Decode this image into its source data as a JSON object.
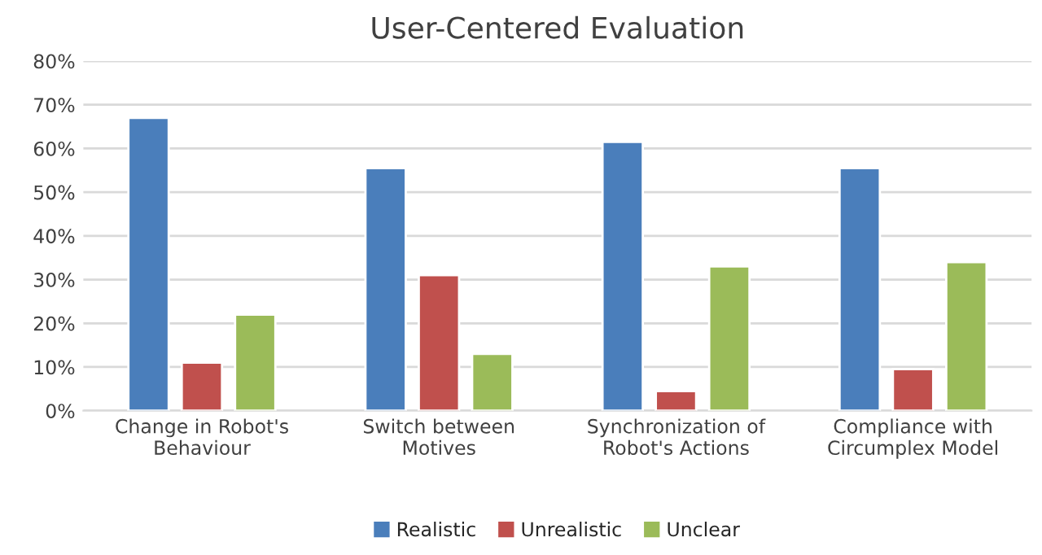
{
  "chart_data": {
    "type": "bar",
    "title": "User-Centered Evaluation",
    "categories": [
      "Change in Robot's\nBehaviour",
      "Switch between\nMotives",
      "Synchronization of\nRobot's Actions",
      "Compliance with\nCircumplex Model"
    ],
    "series": [
      {
        "name": "Realistic",
        "color": "#4a7ebb",
        "values": [
          67,
          55.5,
          61.5,
          55.5
        ]
      },
      {
        "name": "Unrealistic",
        "color": "#c0504d",
        "values": [
          11,
          31,
          4.5,
          9.5
        ]
      },
      {
        "name": "Unclear",
        "color": "#9bbb59",
        "values": [
          22,
          13,
          33,
          34
        ]
      }
    ],
    "ylim": [
      0,
      80
    ],
    "yticks": [
      {
        "value": 0,
        "label": "0%"
      },
      {
        "value": 10,
        "label": "10%"
      },
      {
        "value": 20,
        "label": "20%"
      },
      {
        "value": 30,
        "label": "30%"
      },
      {
        "value": 40,
        "label": "40%"
      },
      {
        "value": 50,
        "label": "50%"
      },
      {
        "value": 60,
        "label": "60%"
      },
      {
        "value": 70,
        "label": "70%"
      },
      {
        "value": 80,
        "label": "80%"
      }
    ],
    "grid": "y",
    "legend": "bottom"
  }
}
